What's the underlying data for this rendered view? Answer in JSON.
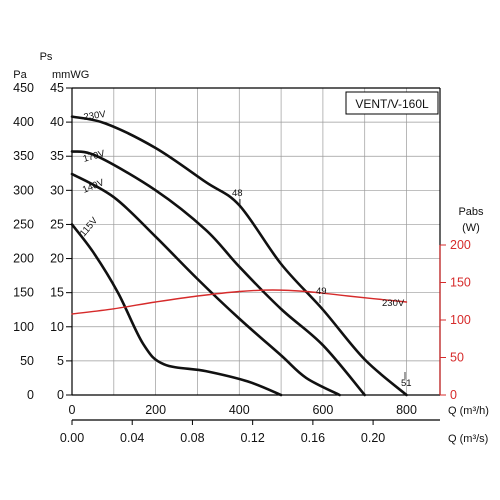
{
  "chart_data": {
    "type": "line",
    "model_label": "VENT/V-160L",
    "y_left_outer": {
      "unit_label": "Pa",
      "ticks": [
        "0",
        "50",
        "100",
        "150",
        "200",
        "250",
        "300",
        "350",
        "400",
        "450"
      ]
    },
    "y_left_inner": {
      "title": "Ps",
      "unit_label": "mmWG",
      "ticks": [
        "0",
        "5",
        "10",
        "15",
        "20",
        "25",
        "30",
        "35",
        "40",
        "45"
      ]
    },
    "y_right": {
      "title": "Pabs",
      "unit_label": "(W)",
      "ticks": [
        "0",
        "50",
        "100",
        "150",
        "200"
      ],
      "color": "#d62b2b"
    },
    "x_top": {
      "label": "Q (m³/h)",
      "ticks": [
        "0",
        "200",
        "400",
        "600",
        "800"
      ]
    },
    "x_bottom": {
      "label": "Q (m³/s)",
      "ticks": [
        "0.00",
        "0.04",
        "0.08",
        "0.12",
        "0.16",
        "0.20"
      ]
    },
    "xlim": [
      0,
      880
    ],
    "ylim": [
      0,
      450
    ],
    "grid": true,
    "series": [
      {
        "name": "230V",
        "color": "#111111",
        "points": [
          [
            0,
            408
          ],
          [
            80,
            398
          ],
          [
            200,
            362
          ],
          [
            320,
            312
          ],
          [
            400,
            278
          ],
          [
            500,
            192
          ],
          [
            600,
            125
          ],
          [
            700,
            52
          ],
          [
            800,
            0
          ]
        ]
      },
      {
        "name": "170V",
        "color": "#111111",
        "points": [
          [
            0,
            357
          ],
          [
            60,
            350
          ],
          [
            200,
            300
          ],
          [
            320,
            242
          ],
          [
            400,
            188
          ],
          [
            500,
            126
          ],
          [
            600,
            73
          ],
          [
            700,
            0
          ]
        ]
      },
      {
        "name": "140V",
        "color": "#111111",
        "points": [
          [
            0,
            324
          ],
          [
            100,
            290
          ],
          [
            200,
            232
          ],
          [
            300,
            170
          ],
          [
            400,
            112
          ],
          [
            500,
            58
          ],
          [
            560,
            25
          ],
          [
            640,
            0
          ]
        ]
      },
      {
        "name": "115V",
        "color": "#111111",
        "points": [
          [
            0,
            250
          ],
          [
            50,
            210
          ],
          [
            110,
            150
          ],
          [
            170,
            75
          ],
          [
            220,
            45
          ],
          [
            320,
            35
          ],
          [
            420,
            20
          ],
          [
            500,
            0
          ]
        ]
      },
      {
        "name": "230V",
        "color": "#d62b2b",
        "axis": "right",
        "points": [
          [
            0,
            108
          ],
          [
            100,
            115
          ],
          [
            200,
            124
          ],
          [
            300,
            132
          ],
          [
            400,
            138
          ],
          [
            480,
            140
          ],
          [
            560,
            138
          ],
          [
            660,
            132
          ],
          [
            800,
            124
          ]
        ]
      }
    ],
    "annotations": [
      "48",
      "49",
      "51"
    ]
  }
}
